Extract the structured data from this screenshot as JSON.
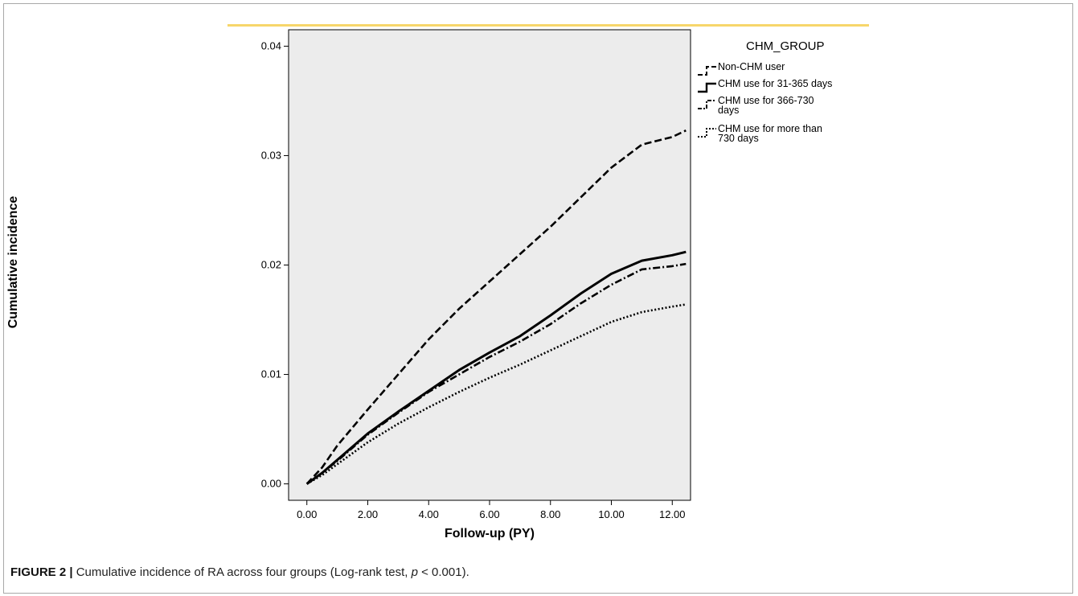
{
  "caption": {
    "label": "FIGURE 2 |",
    "text": " Cumulative incidence of RA across four groups (Log-rank test, ",
    "p_symbol": "p",
    "p_rest": " < 0.001)."
  },
  "colors": {
    "accent_bar": "#f7d66b",
    "plot_background": "#ececec",
    "series_line": "#000000"
  },
  "chart_data": {
    "type": "line",
    "xlabel": "Follow-up (PY)",
    "ylabel": "Cumulative incidence",
    "xlim": [
      -0.6,
      12.6
    ],
    "ylim": [
      -0.0015,
      0.0415
    ],
    "x_ticks": [
      0,
      2,
      4,
      6,
      8,
      10,
      12
    ],
    "x_tick_labels": [
      "0.00",
      "2.00",
      "4.00",
      "6.00",
      "8.00",
      "10.00",
      "12.00"
    ],
    "y_ticks": [
      0,
      0.01,
      0.02,
      0.03,
      0.04
    ],
    "y_tick_labels": [
      "0.00",
      "0.01",
      "0.02",
      "0.03",
      "0.04"
    ],
    "grid": false,
    "legend": {
      "title": "CHM_GROUP",
      "placement": "right",
      "entries": [
        {
          "lines": [
            "Non-CHM user"
          ],
          "style": "dashed"
        },
        {
          "lines": [
            "CHM use for 31-365 days"
          ],
          "style": "solid"
        },
        {
          "lines": [
            "CHM use for 366-730",
            "days"
          ],
          "style": "dashdot"
        },
        {
          "lines": [
            "CHM use for more than",
            "730 days"
          ],
          "style": "dotted"
        }
      ]
    },
    "series": [
      {
        "style": "dashed",
        "x": [
          0,
          0.5,
          1,
          2,
          3,
          4,
          5,
          6,
          7,
          8,
          9,
          10,
          11,
          12,
          12.45
        ],
        "y": [
          0,
          0.0015,
          0.0035,
          0.0068,
          0.01,
          0.0132,
          0.016,
          0.0185,
          0.021,
          0.0235,
          0.0262,
          0.0289,
          0.031,
          0.0317,
          0.0323
        ]
      },
      {
        "style": "solid",
        "x": [
          0,
          0.5,
          1,
          2,
          3,
          4,
          5,
          6,
          7,
          8,
          9,
          10,
          11,
          12,
          12.45
        ],
        "y": [
          0,
          0.001,
          0.0022,
          0.0046,
          0.0066,
          0.0085,
          0.0104,
          0.012,
          0.0135,
          0.0154,
          0.0174,
          0.0192,
          0.0204,
          0.0209,
          0.0212
        ]
      },
      {
        "style": "dashdot",
        "x": [
          0,
          0.5,
          1,
          2,
          3,
          4,
          5,
          6,
          7,
          8,
          9,
          10,
          11,
          12,
          12.45
        ],
        "y": [
          0,
          0.001,
          0.0021,
          0.0045,
          0.0065,
          0.0084,
          0.01,
          0.0116,
          0.013,
          0.0146,
          0.0165,
          0.0182,
          0.0196,
          0.0199,
          0.0201
        ]
      },
      {
        "style": "dotted",
        "x": [
          0,
          0.5,
          1,
          2,
          3,
          4,
          5,
          6,
          7,
          8,
          9,
          10,
          11,
          12,
          12.45
        ],
        "y": [
          0,
          0.0008,
          0.0018,
          0.0038,
          0.0055,
          0.007,
          0.0084,
          0.0097,
          0.0109,
          0.0122,
          0.0135,
          0.0148,
          0.0157,
          0.0162,
          0.0164
        ]
      }
    ]
  }
}
